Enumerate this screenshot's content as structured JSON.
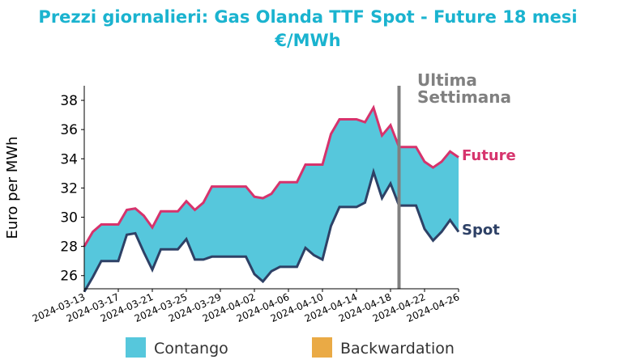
{
  "chart_data": {
    "type": "area",
    "title_line1": "Prezzi giornalieri: Gas Olanda TTF Spot - Future 18 mesi",
    "title_line2": "€/MWh",
    "xlabel": "",
    "ylabel": "Euro per MWh",
    "ylim": [
      25.1,
      39
    ],
    "yticks": [
      26,
      28,
      30,
      32,
      34,
      36,
      38
    ],
    "x_range": [
      "2024-03-13",
      "2024-04-26"
    ],
    "xticks": [
      "2024-03-13",
      "2024-03-17",
      "2024-03-21",
      "2024-03-25",
      "2024-03-29",
      "2024-04-02",
      "2024-04-06",
      "2024-04-10",
      "2024-04-14",
      "2024-04-18",
      "2024-04-22",
      "2024-04-26"
    ],
    "grid": false,
    "x": [
      "2024-03-13",
      "2024-03-14",
      "2024-03-15",
      "2024-03-16",
      "2024-03-17",
      "2024-03-18",
      "2024-03-19",
      "2024-03-20",
      "2024-03-21",
      "2024-03-22",
      "2024-03-23",
      "2024-03-24",
      "2024-03-25",
      "2024-03-26",
      "2024-03-27",
      "2024-03-28",
      "2024-03-29",
      "2024-03-30",
      "2024-03-31",
      "2024-04-01",
      "2024-04-02",
      "2024-04-03",
      "2024-04-04",
      "2024-04-05",
      "2024-04-06",
      "2024-04-07",
      "2024-04-08",
      "2024-04-09",
      "2024-04-10",
      "2024-04-11",
      "2024-04-12",
      "2024-04-13",
      "2024-04-14",
      "2024-04-15",
      "2024-04-16",
      "2024-04-17",
      "2024-04-18",
      "2024-04-19",
      "2024-04-20",
      "2024-04-21",
      "2024-04-22",
      "2024-04-23",
      "2024-04-24",
      "2024-04-25",
      "2024-04-26"
    ],
    "series": [
      {
        "name": "Future",
        "color": "#d6336c",
        "values": [
          28.0,
          29.0,
          29.5,
          29.5,
          29.5,
          30.5,
          30.6,
          30.1,
          29.3,
          30.4,
          30.4,
          30.4,
          31.1,
          30.5,
          31.0,
          32.1,
          32.1,
          32.1,
          32.1,
          32.1,
          31.4,
          31.3,
          31.6,
          32.4,
          32.4,
          32.4,
          33.6,
          33.6,
          33.6,
          35.7,
          36.7,
          36.7,
          36.7,
          36.5,
          37.5,
          35.6,
          36.3,
          34.8,
          34.8,
          34.8,
          33.8,
          33.4,
          33.8,
          34.5,
          34.1
        ]
      },
      {
        "name": "Spot",
        "color": "#2e4166",
        "values": [
          24.9,
          25.9,
          27.0,
          27.0,
          27.0,
          28.8,
          28.9,
          27.6,
          26.4,
          27.8,
          27.8,
          27.8,
          28.5,
          27.1,
          27.1,
          27.3,
          27.3,
          27.3,
          27.3,
          27.3,
          26.1,
          25.6,
          26.3,
          26.6,
          26.6,
          26.6,
          27.9,
          27.4,
          27.1,
          29.4,
          30.7,
          30.7,
          30.7,
          31.0,
          33.1,
          31.3,
          32.3,
          30.8,
          30.8,
          30.8,
          29.2,
          28.4,
          29.0,
          29.8,
          29.0
        ]
      }
    ],
    "fill": {
      "contango_color": "#56c7dc",
      "backwardation_color": "#eaaa45"
    },
    "vline": {
      "x": "2024-04-19",
      "label_line1": "Ultima",
      "label_line2": "Settimana",
      "color": "#808080"
    },
    "end_labels": {
      "future": "Future",
      "spot": "Spot"
    },
    "legend": {
      "position": "bottom",
      "entries": [
        {
          "label": "Contango",
          "color": "#56c7dc"
        },
        {
          "label": "Backwardation",
          "color": "#eaaa45"
        }
      ]
    },
    "title_color": "#1ab3cf"
  }
}
